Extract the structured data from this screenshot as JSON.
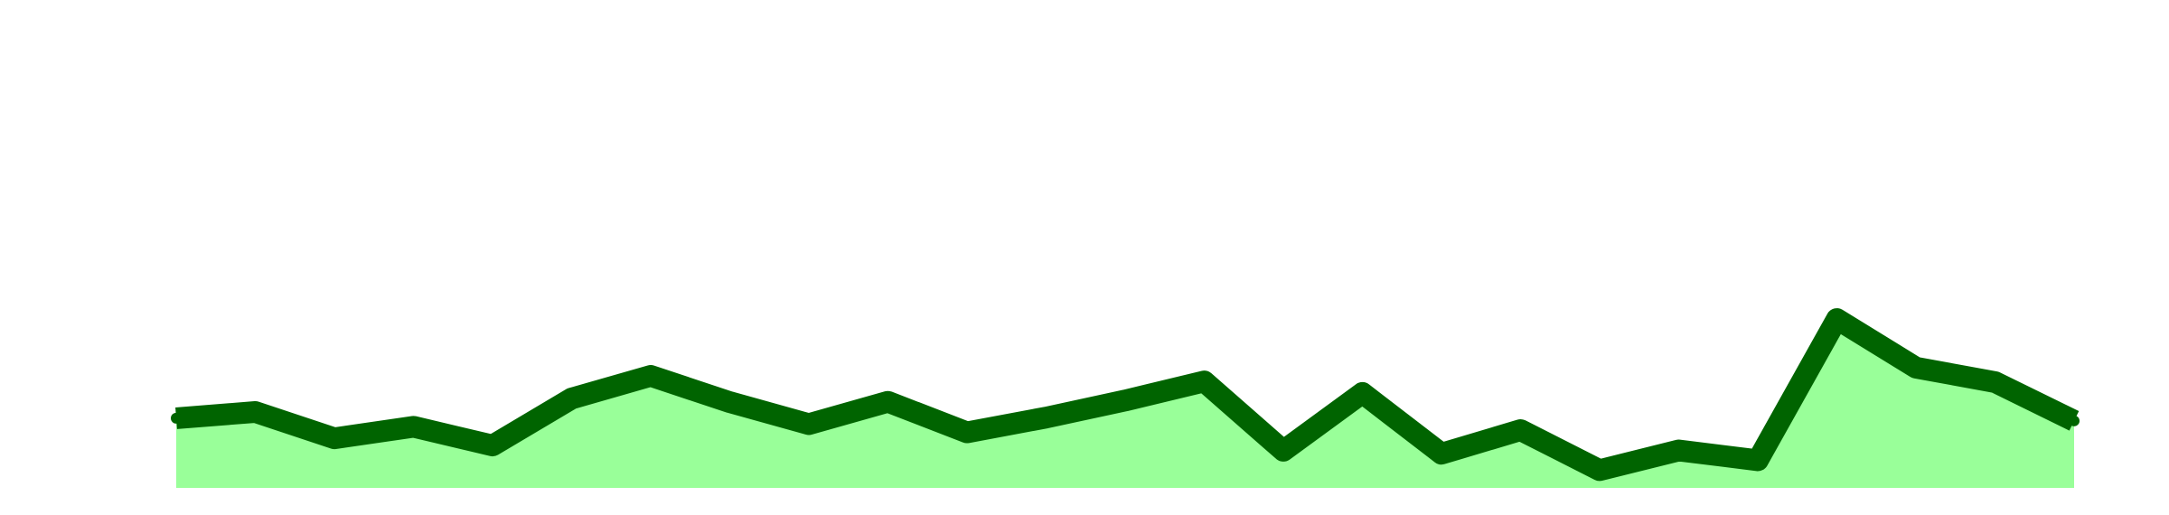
{
  "chart_data": {
    "type": "area",
    "title": "",
    "xlabel": "",
    "ylabel": "",
    "x": [
      0,
      1,
      2,
      3,
      4,
      5,
      6,
      7,
      8,
      9,
      10,
      11,
      12,
      13,
      14,
      15,
      16,
      17,
      18,
      19,
      20,
      21,
      22,
      23,
      24
    ],
    "values": [
      9.2,
      11.1,
      3.1,
      6.6,
      0.9,
      15.2,
      22.1,
      14.1,
      7.4,
      14.2,
      4.9,
      9.4,
      14.6,
      20.4,
      -0.7,
      16.9,
      -1.6,
      5.6,
      -6.6,
      -0.6,
      -3.6,
      39.4,
      24.6,
      20.2,
      8.4
    ],
    "ylim": [
      -12,
      131
    ],
    "grid": false,
    "legend": "none",
    "colors": {
      "line": "#006400",
      "fill": "#99ff99",
      "background": "#ffffff"
    }
  }
}
